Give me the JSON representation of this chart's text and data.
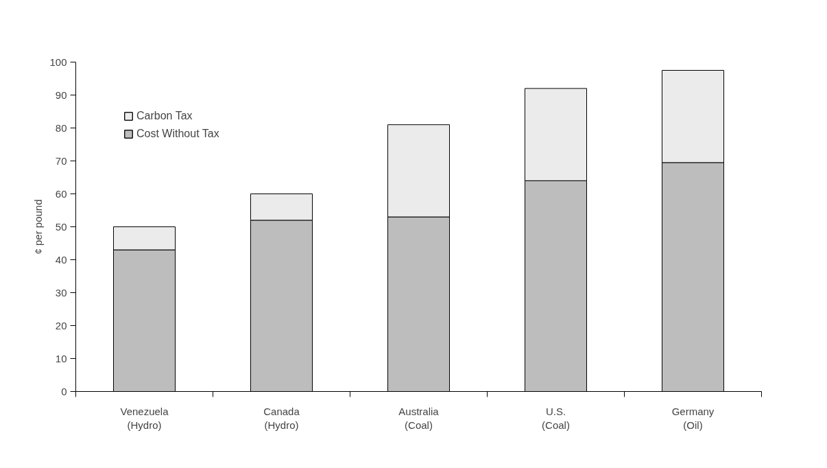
{
  "chart_data": {
    "type": "bar",
    "stacked": true,
    "ylabel": "¢ per pound",
    "categories": [
      "Venezuela\n(Hydro)",
      "Canada\n(Hydro)",
      "Australia\n(Coal)",
      "U.S.\n(Coal)",
      "Germany\n(Oil)"
    ],
    "series": [
      {
        "name": "Cost Without Tax",
        "color": "#bdbdbd",
        "values": [
          43,
          52,
          53,
          64,
          69.5
        ]
      },
      {
        "name": "Carbon Tax",
        "color": "#ebebeb",
        "values": [
          7,
          8,
          28,
          28,
          28
        ]
      }
    ],
    "ylim": [
      0,
      100
    ],
    "yticks": [
      0,
      10,
      20,
      30,
      40,
      50,
      60,
      70,
      80,
      90,
      100
    ],
    "grid": false,
    "legend": "top left"
  }
}
